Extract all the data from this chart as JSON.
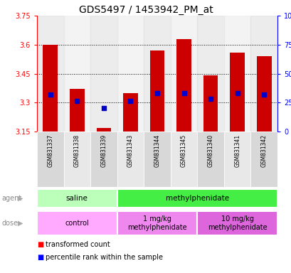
{
  "title": "GDS5497 / 1453942_PM_at",
  "samples": [
    "GSM831337",
    "GSM831338",
    "GSM831339",
    "GSM831343",
    "GSM831344",
    "GSM831345",
    "GSM831340",
    "GSM831341",
    "GSM831342"
  ],
  "bar_bottoms": [
    3.15,
    3.15,
    3.15,
    3.15,
    3.15,
    3.15,
    3.15,
    3.15,
    3.15
  ],
  "bar_tops": [
    3.6,
    3.37,
    3.17,
    3.35,
    3.57,
    3.63,
    3.44,
    3.56,
    3.54
  ],
  "blue_dots": [
    3.34,
    3.31,
    3.27,
    3.31,
    3.35,
    3.35,
    3.32,
    3.35,
    3.34
  ],
  "ylim": [
    3.15,
    3.75
  ],
  "yticks": [
    3.15,
    3.3,
    3.45,
    3.6,
    3.75
  ],
  "ytick_labels": [
    "3.15",
    "3.3",
    "3.45",
    "3.6",
    "3.75"
  ],
  "grid_yticks": [
    3.3,
    3.45,
    3.6
  ],
  "right_yticks": [
    0,
    25,
    50,
    75,
    100
  ],
  "right_ytick_labels": [
    "0",
    "25",
    "50",
    "75",
    "100%"
  ],
  "bar_color": "#cc0000",
  "dot_color": "#0000cc",
  "agent_groups": [
    {
      "label": "saline",
      "start": 0,
      "end": 3,
      "color": "#bbffbb"
    },
    {
      "label": "methylphenidate",
      "start": 3,
      "end": 9,
      "color": "#44ee44"
    }
  ],
  "dose_groups": [
    {
      "label": "control",
      "start": 0,
      "end": 3,
      "color": "#ffaaff"
    },
    {
      "label": "1 mg/kg\nmethylphenidate",
      "start": 3,
      "end": 6,
      "color": "#ee88ee"
    },
    {
      "label": "10 mg/kg\nmethylphenidate",
      "start": 6,
      "end": 9,
      "color": "#dd66dd"
    }
  ],
  "bar_width": 0.55,
  "background_color": "#ffffff",
  "title_fontsize": 10,
  "tick_fontsize": 7,
  "sample_fontsize": 5.5
}
